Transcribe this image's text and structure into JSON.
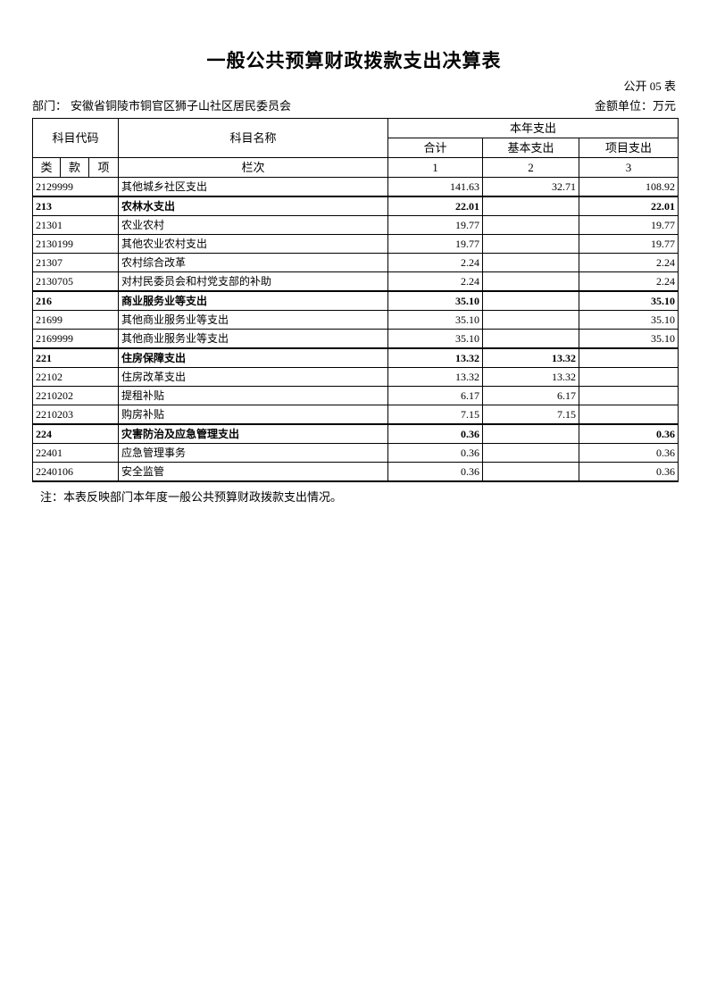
{
  "title": "一般公共预算财政拨款支出决算表",
  "meta": {
    "table_number": "公开 05 表",
    "department_label": "部门：",
    "department_value": "安徽省铜陵市铜官区狮子山社区居民委员会",
    "unit_label": "金额单位：",
    "unit_value": "万元"
  },
  "table": {
    "header": {
      "subject_code": "科目代码",
      "subject_name": "科目名称",
      "current_year_expenditure": "本年支出",
      "total": "合计",
      "basic_expenditure": "基本支出",
      "project_expenditure": "项目支出",
      "class": "类",
      "section": "款",
      "item": "项",
      "column_label": "栏次",
      "column_numbers": [
        "1",
        "2",
        "3"
      ]
    },
    "rows": [
      {
        "code": "2129999",
        "name": "其他城乡社区支出",
        "total": "141.63",
        "basic": "32.71",
        "project": "108.92",
        "bold": false
      },
      {
        "code": "213",
        "name": "农林水支出",
        "total": "22.01",
        "basic": "",
        "project": "22.01",
        "bold": true
      },
      {
        "code": "21301",
        "name": "农业农村",
        "total": "19.77",
        "basic": "",
        "project": "19.77",
        "bold": false
      },
      {
        "code": "2130199",
        "name": "其他农业农村支出",
        "total": "19.77",
        "basic": "",
        "project": "19.77",
        "bold": false
      },
      {
        "code": "21307",
        "name": "农村综合改革",
        "total": "2.24",
        "basic": "",
        "project": "2.24",
        "bold": false
      },
      {
        "code": "2130705",
        "name": "对村民委员会和村党支部的补助",
        "total": "2.24",
        "basic": "",
        "project": "2.24",
        "bold": false
      },
      {
        "code": "216",
        "name": "商业服务业等支出",
        "total": "35.10",
        "basic": "",
        "project": "35.10",
        "bold": true
      },
      {
        "code": "21699",
        "name": "其他商业服务业等支出",
        "total": "35.10",
        "basic": "",
        "project": "35.10",
        "bold": false
      },
      {
        "code": "2169999",
        "name": "其他商业服务业等支出",
        "total": "35.10",
        "basic": "",
        "project": "35.10",
        "bold": false
      },
      {
        "code": "221",
        "name": "住房保障支出",
        "total": "13.32",
        "basic": "13.32",
        "project": "",
        "bold": true
      },
      {
        "code": "22102",
        "name": "住房改革支出",
        "total": "13.32",
        "basic": "13.32",
        "project": "",
        "bold": false
      },
      {
        "code": "2210202",
        "name": "提租补贴",
        "total": "6.17",
        "basic": "6.17",
        "project": "",
        "bold": false
      },
      {
        "code": "2210203",
        "name": "购房补贴",
        "total": "7.15",
        "basic": "7.15",
        "project": "",
        "bold": false
      },
      {
        "code": "224",
        "name": "灾害防治及应急管理支出",
        "total": "0.36",
        "basic": "",
        "project": "0.36",
        "bold": true
      },
      {
        "code": "22401",
        "name": "应急管理事务",
        "total": "0.36",
        "basic": "",
        "project": "0.36",
        "bold": false
      },
      {
        "code": "2240106",
        "name": "安全监管",
        "total": "0.36",
        "basic": "",
        "project": "0.36",
        "bold": false
      }
    ]
  },
  "note": "注：本表反映部门本年度一般公共预算财政拨款支出情况。"
}
